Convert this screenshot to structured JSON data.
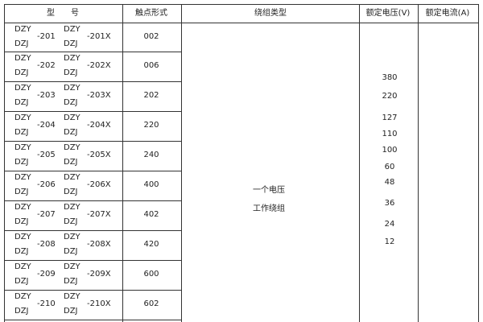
{
  "header": {
    "model": "型　　号",
    "contact_form": "触点形式",
    "winding_type": "绕组类型",
    "rated_voltage": "额定电压(V)",
    "rated_current": "额定电流(A)"
  },
  "rows": [
    {
      "a": "DZY",
      "b": "DZJ",
      "n": "-201",
      "c": "DZY",
      "d": "DZJ",
      "x": "-201X",
      "contact": "002"
    },
    {
      "a": "DZY",
      "b": "DZJ",
      "n": "-202",
      "c": "DZY",
      "d": "DZJ",
      "x": "-202X",
      "contact": "006"
    },
    {
      "a": "DZY",
      "b": "DZJ",
      "n": "-203",
      "c": "DZY",
      "d": "DZJ",
      "x": "-203X",
      "contact": "202"
    },
    {
      "a": "DZY",
      "b": "DZJ",
      "n": "-204",
      "c": "DZY",
      "d": "DZJ",
      "x": "-204X",
      "contact": "220"
    },
    {
      "a": "DZY",
      "b": "DZJ",
      "n": "-205",
      "c": "DZY",
      "d": "DZJ",
      "x": "-205X",
      "contact": "240"
    },
    {
      "a": "DZY",
      "b": "DZJ",
      "n": "-206",
      "c": "DZY",
      "d": "DZJ",
      "x": "-206X",
      "contact": "400"
    },
    {
      "a": "DZY",
      "b": "DZJ",
      "n": "-207",
      "c": "DZY",
      "d": "DZJ",
      "x": "-207X",
      "contact": "402"
    },
    {
      "a": "DZY",
      "b": "DZJ",
      "n": "-208",
      "c": "DZY",
      "d": "DZJ",
      "x": "-208X",
      "contact": "420"
    },
    {
      "a": "DZY",
      "b": "DZJ",
      "n": "-209",
      "c": "DZY",
      "d": "DZJ",
      "x": "-209X",
      "contact": "600"
    },
    {
      "a": "DZY",
      "b": "DZJ",
      "n": "-210",
      "c": "DZY",
      "d": "DZJ",
      "x": "-210X",
      "contact": "602"
    }
  ],
  "winding": {
    "line1": "一个电压",
    "line2": "工作绕组"
  },
  "voltages": [
    "380",
    "220",
    "127",
    "110",
    "100",
    "60",
    "48",
    "36",
    "24",
    "12"
  ]
}
